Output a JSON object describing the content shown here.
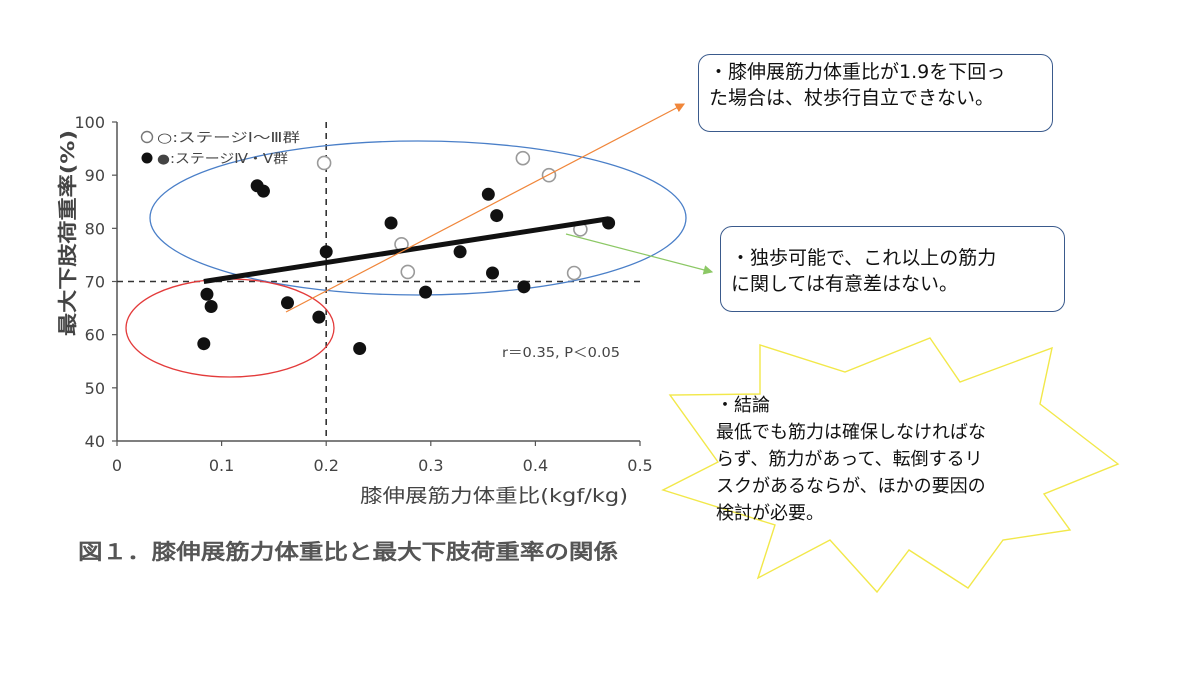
{
  "chart_data": {
    "type": "scatter",
    "xlabel": "膝伸展筋力体重比(kgf/kg)",
    "ylabel": "最大下肢荷重率(%)",
    "xlim": [
      0,
      0.5
    ],
    "ylim": [
      40,
      100
    ],
    "x_ticks": [
      "0",
      "0.1",
      "0.2",
      "0.3",
      "0.4",
      "0.5"
    ],
    "y_ticks": [
      "40",
      "50",
      "60",
      "70",
      "80",
      "90",
      "100"
    ],
    "series": [
      {
        "name": "○:ステージⅠ～Ⅲ群",
        "marker": "open-circle",
        "points": [
          {
            "x": 0.198,
            "y": 92.3
          },
          {
            "x": 0.388,
            "y": 93.2
          },
          {
            "x": 0.413,
            "y": 90.0
          },
          {
            "x": 0.272,
            "y": 77.0
          },
          {
            "x": 0.278,
            "y": 71.8
          },
          {
            "x": 0.443,
            "y": 79.8
          },
          {
            "x": 0.437,
            "y": 71.6
          }
        ]
      },
      {
        "name": "●:ステージⅣ・Ⅴ群",
        "marker": "filled-circle",
        "points": [
          {
            "x": 0.134,
            "y": 88.0
          },
          {
            "x": 0.14,
            "y": 87.0
          },
          {
            "x": 0.2,
            "y": 75.6
          },
          {
            "x": 0.262,
            "y": 81.0
          },
          {
            "x": 0.355,
            "y": 86.4
          },
          {
            "x": 0.363,
            "y": 82.4
          },
          {
            "x": 0.47,
            "y": 81.0
          },
          {
            "x": 0.328,
            "y": 75.6
          },
          {
            "x": 0.359,
            "y": 71.6
          },
          {
            "x": 0.389,
            "y": 69.0
          },
          {
            "x": 0.295,
            "y": 68.0
          },
          {
            "x": 0.086,
            "y": 67.6
          },
          {
            "x": 0.09,
            "y": 65.3
          },
          {
            "x": 0.163,
            "y": 66.0
          },
          {
            "x": 0.193,
            "y": 63.3
          },
          {
            "x": 0.083,
            "y": 58.3
          },
          {
            "x": 0.232,
            "y": 57.4
          }
        ]
      }
    ],
    "regression_line": {
      "x": [
        0.083,
        0.47
      ],
      "y": [
        70.0,
        81.8
      ]
    },
    "reference_lines": {
      "x": 0.2,
      "y": 70
    },
    "annotation": "r＝0.35, P＜0.05",
    "legend_position": "top-left",
    "grid": false,
    "figure_caption": "図１．膝伸展筋力体重比と最大下肢荷重率の関係",
    "colors": {
      "axis": "#555555",
      "text": "#444444",
      "points_filled": "#111111",
      "points_open_stroke": "#9a9a9a",
      "regression": "#111111",
      "blue_ellipse": "#4a7fc8",
      "red_ellipse": "#e33b3b",
      "orange_arrow": "#f0863a",
      "green_arrow": "#8cc865",
      "star_border": "#f2e84a",
      "note_border": "#3a5a8c"
    }
  },
  "callouts": {
    "note1_line1": "・膝伸展筋力体重比が1.9を下回っ",
    "note1_line2": "た場合は、杖歩行自立できない。",
    "note2_line1": "・独歩可能で、これ以上の筋力",
    "note2_line2": "に関しては有意差はない。",
    "conclusion_title": "・結論",
    "conclusion_line1": "最低でも筋力は確保しなければな",
    "conclusion_line2": "らず、筋力があって、転倒するリ",
    "conclusion_line3": "スクがあるならが、ほかの要因の",
    "conclusion_line4": "検討が必要。"
  }
}
